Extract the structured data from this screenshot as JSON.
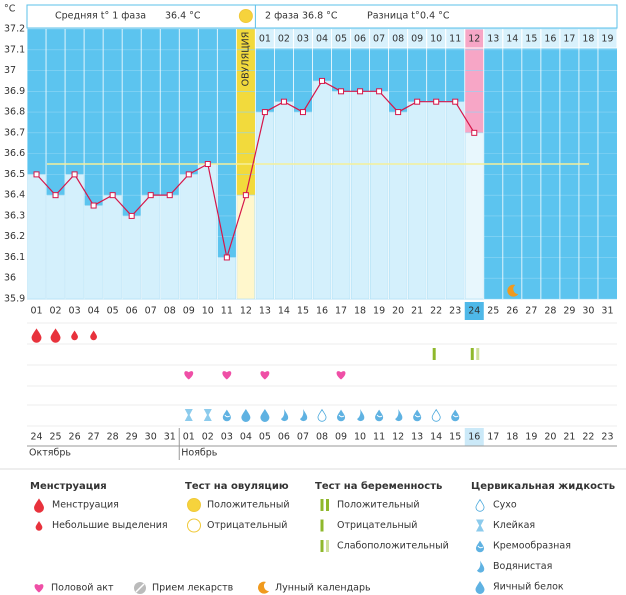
{
  "header": {
    "unit": "°C",
    "phase1_label": "Средняя t° 1 фаза",
    "phase1_avg": "36.4 °C",
    "phase2_label": "2 фаза",
    "phase2_avg": "36.8 °C",
    "diff_label": "Разница t°",
    "diff_value": "0.4 °C"
  },
  "chart_data": {
    "type": "line",
    "color": "#d6174a",
    "categories": [
      "01",
      "02",
      "03",
      "04",
      "05",
      "06",
      "07",
      "08",
      "09",
      "10",
      "11",
      "12",
      "13",
      "14",
      "15",
      "16",
      "17",
      "18",
      "19",
      "20",
      "21",
      "22",
      "23",
      "24",
      "25",
      "26",
      "27",
      "28",
      "29",
      "30",
      "31"
    ],
    "values": [
      36.5,
      36.4,
      36.5,
      36.35,
      36.4,
      36.3,
      36.4,
      36.4,
      36.5,
      36.55,
      36.1,
      36.4,
      36.8,
      36.85,
      36.8,
      36.95,
      36.9,
      36.9,
      36.9,
      36.8,
      36.85,
      36.85,
      36.85,
      36.7,
      null,
      null,
      null,
      null,
      null,
      null,
      null
    ],
    "ylim": [
      35.9,
      37.2
    ],
    "yticks": [
      37.2,
      37.1,
      37,
      36.9,
      36.8,
      36.7,
      36.6,
      36.5,
      36.4,
      36.3,
      36.2,
      36.1,
      36,
      35.9
    ],
    "coverline": 36.55,
    "ovulation_day": 12,
    "ovulation_label": "ОВУЛЯЦИЯ",
    "today": 24,
    "phase2_days": [
      "01",
      "02",
      "03",
      "04",
      "05",
      "06",
      "07",
      "08",
      "09",
      "10",
      "11",
      "12",
      "13",
      "14",
      "15",
      "16",
      "17",
      "18",
      "19"
    ],
    "dates": [
      "24",
      "25",
      "26",
      "27",
      "28",
      "29",
      "30",
      "31",
      "01",
      "02",
      "03",
      "04",
      "05",
      "06",
      "07",
      "08",
      "09",
      "10",
      "11",
      "12",
      "13",
      "14",
      "15",
      "16",
      "17",
      "18",
      "19",
      "20",
      "21",
      "22",
      "23"
    ],
    "dates_red": [
      true,
      true,
      false,
      false,
      false,
      false,
      false,
      true,
      true,
      false,
      false,
      false,
      false,
      false,
      true,
      true,
      false,
      false,
      false,
      false,
      false,
      true,
      true,
      false,
      false,
      false,
      false,
      false,
      true,
      true,
      false
    ],
    "months": [
      {
        "label": "Октябрь",
        "start": 1
      },
      {
        "label": "Ноябрь",
        "start": 9
      }
    ],
    "menstruation": [
      {
        "day": 1,
        "kind": "heavy"
      },
      {
        "day": 2,
        "kind": "heavy"
      },
      {
        "day": 3,
        "kind": "light"
      },
      {
        "day": 4,
        "kind": "light"
      }
    ],
    "ovulation_tests": [
      {
        "day": 12,
        "kind": "positive"
      }
    ],
    "pregnancy_tests": [
      {
        "day": 22,
        "kind": "negative"
      },
      {
        "day": 24,
        "kind": "weak"
      }
    ],
    "intercourse_days": [
      9,
      11,
      13,
      17
    ],
    "moon_days": [
      26
    ],
    "cervical": [
      {
        "day": 9,
        "kind": "sticky"
      },
      {
        "day": 10,
        "kind": "sticky"
      },
      {
        "day": 11,
        "kind": "creamy"
      },
      {
        "day": 12,
        "kind": "eggwhite"
      },
      {
        "day": 13,
        "kind": "eggwhite"
      },
      {
        "day": 14,
        "kind": "watery"
      },
      {
        "day": 15,
        "kind": "watery"
      },
      {
        "day": 16,
        "kind": "dry"
      },
      {
        "day": 17,
        "kind": "creamy"
      },
      {
        "day": 18,
        "kind": "watery"
      },
      {
        "day": 19,
        "kind": "creamy"
      },
      {
        "day": 20,
        "kind": "watery"
      },
      {
        "day": 21,
        "kind": "creamy"
      },
      {
        "day": 22,
        "kind": "dry"
      },
      {
        "day": 23,
        "kind": "creamy"
      }
    ]
  },
  "legend": {
    "groups": [
      {
        "title": "Менструация",
        "set": "menstruation",
        "items": [
          {
            "kind": "heavy",
            "label": "Менструация"
          },
          {
            "kind": "light",
            "label": "Небольшие выделения"
          }
        ]
      },
      {
        "title": "Тест на овуляцию",
        "set": "ovulation",
        "items": [
          {
            "kind": "positive",
            "label": "Положительный"
          },
          {
            "kind": "negative",
            "label": "Отрицательный"
          }
        ]
      },
      {
        "title": "Тест на беременность",
        "set": "pregnancy",
        "items": [
          {
            "kind": "positive",
            "label": "Положительный"
          },
          {
            "kind": "negative",
            "label": "Отрицательный"
          },
          {
            "kind": "weak",
            "label": "Слабоположительный"
          }
        ]
      },
      {
        "title": "Цервикальная жидкость",
        "set": "cervical",
        "items": [
          {
            "kind": "dry",
            "label": "Сухо"
          },
          {
            "kind": "sticky",
            "label": "Клейкая"
          },
          {
            "kind": "creamy",
            "label": "Кремообразная"
          },
          {
            "kind": "watery",
            "label": "Водянистая"
          },
          {
            "kind": "eggwhite",
            "label": "Яичный белок"
          }
        ]
      }
    ],
    "other": [
      {
        "kind": "heart",
        "label": "Половой акт"
      },
      {
        "kind": "pill",
        "label": "Прием лекарств"
      },
      {
        "kind": "moon",
        "label": "Лунный календарь"
      }
    ]
  }
}
